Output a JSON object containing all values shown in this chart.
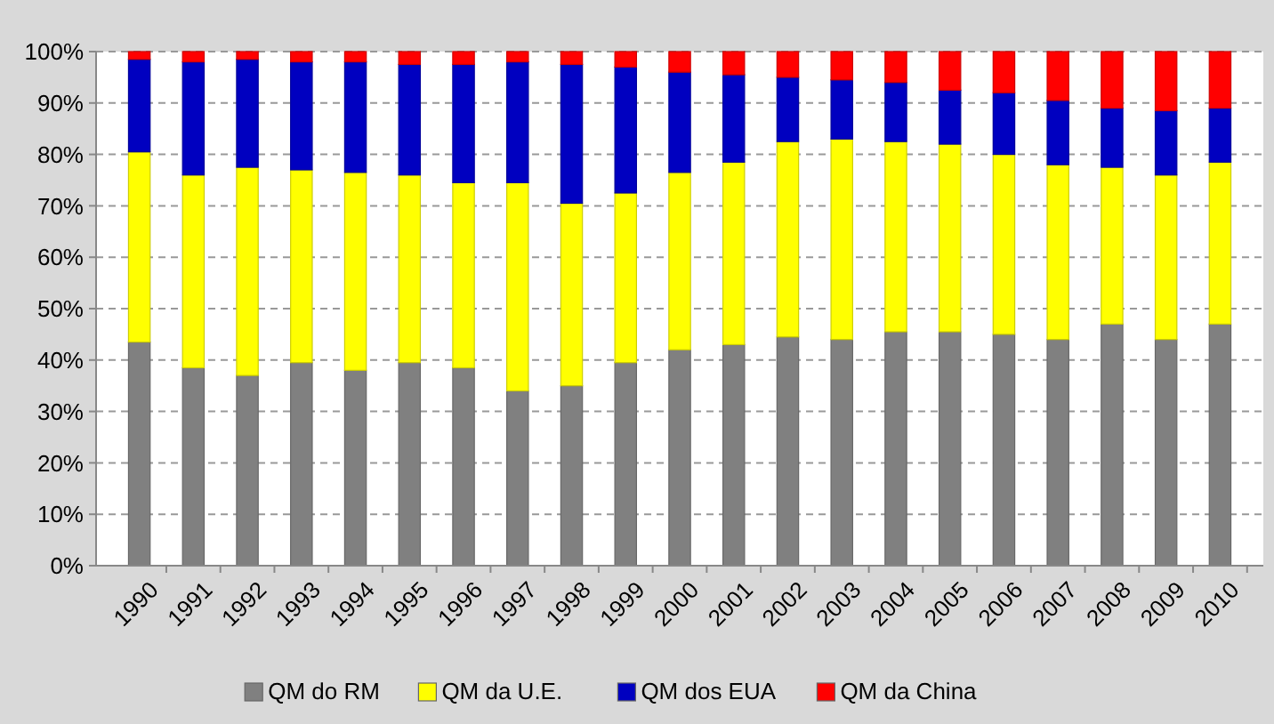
{
  "chart_data": {
    "type": "bar",
    "stacked": true,
    "categories": [
      "1990",
      "1991",
      "1992",
      "1993",
      "1994",
      "1995",
      "1996",
      "1997",
      "1998",
      "1999",
      "2000",
      "2001",
      "2002",
      "2003",
      "2004",
      "2005",
      "2006",
      "2007",
      "2008",
      "2009",
      "2010"
    ],
    "series": [
      {
        "name": "QM do RM",
        "color": "#808080",
        "values": [
          43.5,
          38.5,
          37,
          39.5,
          38,
          39.5,
          38.5,
          34,
          35,
          39.5,
          42,
          43,
          44.5,
          44,
          45.5,
          45.5,
          45,
          44,
          47,
          44,
          47
        ]
      },
      {
        "name": "QM da U.E.",
        "color": "#ffff00",
        "values": [
          37,
          37.5,
          40.5,
          37.5,
          38.5,
          36.5,
          36,
          40.5,
          35.5,
          33,
          34.5,
          35.5,
          38,
          39,
          37,
          36.5,
          35,
          34,
          30.5,
          32,
          31.5
        ]
      },
      {
        "name": "QM dos EUA",
        "color": "#0000c0",
        "values": [
          18,
          22,
          21,
          21,
          21.5,
          21.5,
          23,
          23.5,
          27,
          24.5,
          19.5,
          17,
          12.5,
          11.5,
          11.5,
          10.5,
          12,
          12.5,
          11.5,
          12.5,
          10.5
        ]
      },
      {
        "name": "QM da China",
        "color": "#ff0000",
        "values": [
          1.5,
          2,
          1.5,
          2,
          2,
          2.5,
          2.5,
          2,
          2.5,
          3,
          4,
          4.5,
          5,
          5.5,
          6,
          7.5,
          8,
          9.5,
          11,
          11.5,
          11
        ]
      }
    ],
    "ylim": [
      0,
      100
    ],
    "yticks": [
      {
        "value": 0,
        "label": "0%"
      },
      {
        "value": 10,
        "label": "10%"
      },
      {
        "value": 20,
        "label": "20%"
      },
      {
        "value": 30,
        "label": "30%"
      },
      {
        "value": 40,
        "label": "40%"
      },
      {
        "value": 50,
        "label": "50%"
      },
      {
        "value": 60,
        "label": "60%"
      },
      {
        "value": 70,
        "label": "70%"
      },
      {
        "value": 80,
        "label": "80%"
      },
      {
        "value": 90,
        "label": "90%"
      },
      {
        "value": 100,
        "label": "100%"
      }
    ],
    "grid": "y",
    "legend": "bottom"
  }
}
